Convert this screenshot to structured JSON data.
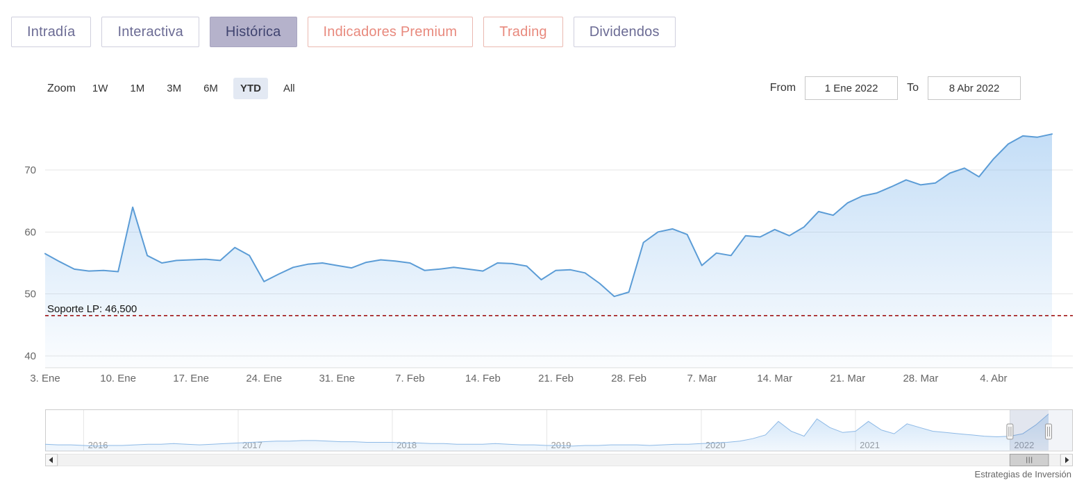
{
  "tabs": [
    {
      "label": "Intradía",
      "active": false,
      "style": "purple"
    },
    {
      "label": "Interactiva",
      "active": false,
      "style": "purple"
    },
    {
      "label": "Histórica",
      "active": true,
      "style": "purple"
    },
    {
      "label": "Indicadores Premium",
      "active": false,
      "style": "salmon"
    },
    {
      "label": "Trading",
      "active": false,
      "style": "salmon"
    },
    {
      "label": "Dividendos",
      "active": false,
      "style": "purple"
    }
  ],
  "toolbar": {
    "zoom_label": "Zoom",
    "zoom_buttons": [
      {
        "label": "1W",
        "selected": false
      },
      {
        "label": "1M",
        "selected": false
      },
      {
        "label": "3M",
        "selected": false
      },
      {
        "label": "6M",
        "selected": false
      },
      {
        "label": "YTD",
        "selected": true
      },
      {
        "label": "All",
        "selected": false
      }
    ],
    "from_label": "From",
    "from_value": "1 Ene 2022",
    "to_label": "To",
    "to_value": "8 Abr 2022"
  },
  "chart_data": [
    {
      "type": "area",
      "name": "price-main",
      "title": "",
      "xlabel": "",
      "ylabel": "",
      "ylim": [
        38,
        76.5
      ],
      "yticks": [
        40,
        50,
        60,
        70
      ],
      "grid": "horizontal",
      "x": [
        "3 Ene",
        "4 Ene",
        "5 Ene",
        "6 Ene",
        "7 Ene",
        "10 Ene",
        "11 Ene",
        "12 Ene",
        "13 Ene",
        "14 Ene",
        "17 Ene",
        "18 Ene",
        "19 Ene",
        "20 Ene",
        "21 Ene",
        "24 Ene",
        "25 Ene",
        "26 Ene",
        "27 Ene",
        "28 Ene",
        "31 Ene",
        "1 Feb",
        "2 Feb",
        "3 Feb",
        "4 Feb",
        "7 Feb",
        "8 Feb",
        "9 Feb",
        "10 Feb",
        "11 Feb",
        "14 Feb",
        "15 Feb",
        "16 Feb",
        "17 Feb",
        "18 Feb",
        "21 Feb",
        "22 Feb",
        "23 Feb",
        "24 Feb",
        "25 Feb",
        "28 Feb",
        "1 Mar",
        "2 Mar",
        "3 Mar",
        "4 Mar",
        "7 Mar",
        "8 Mar",
        "9 Mar",
        "10 Mar",
        "11 Mar",
        "14 Mar",
        "15 Mar",
        "16 Mar",
        "17 Mar",
        "18 Mar",
        "21 Mar",
        "22 Mar",
        "23 Mar",
        "24 Mar",
        "25 Mar",
        "28 Mar",
        "29 Mar",
        "30 Mar",
        "31 Mar",
        "1 Abr",
        "4 Abr",
        "5 Abr",
        "6 Abr",
        "7 Abr",
        "8 Abr"
      ],
      "values": [
        56.5,
        55.2,
        54.0,
        53.7,
        53.8,
        53.6,
        64.0,
        56.2,
        55.0,
        55.4,
        55.5,
        55.6,
        55.4,
        57.5,
        56.2,
        52.0,
        53.2,
        54.3,
        54.8,
        55.0,
        54.6,
        54.2,
        55.1,
        55.5,
        55.3,
        55.0,
        53.8,
        54.0,
        54.3,
        54.0,
        53.7,
        55.0,
        54.9,
        54.5,
        52.3,
        53.8,
        53.9,
        53.4,
        51.7,
        49.6,
        50.3,
        58.3,
        60.0,
        60.5,
        59.6,
        54.6,
        56.6,
        56.2,
        59.4,
        59.2,
        60.4,
        59.4,
        60.8,
        63.3,
        62.7,
        64.7,
        65.8,
        66.3,
        67.3,
        68.4,
        67.6,
        67.9,
        69.5,
        70.3,
        68.9,
        71.8,
        74.2,
        75.5,
        75.3,
        75.8
      ],
      "x_tick_indices": [
        0,
        5,
        10,
        15,
        20,
        25,
        30,
        35,
        40,
        45,
        50,
        55,
        60,
        65
      ],
      "x_tick_labels": [
        "3. Ene",
        "10. Ene",
        "17. Ene",
        "24. Ene",
        "31. Ene",
        "7. Feb",
        "14. Feb",
        "21. Feb",
        "28. Feb",
        "7. Mar",
        "14. Mar",
        "21. Mar",
        "28. Mar",
        "4. Abr"
      ],
      "annotation_line": {
        "value": 46.5,
        "label": "Soporte LP: 46,500",
        "color": "#990000",
        "style": "dashed"
      }
    },
    {
      "type": "area",
      "name": "navigator-overview",
      "ylim": [
        14,
        78
      ],
      "values": [
        25,
        24,
        24,
        23,
        22,
        23,
        23,
        24,
        25,
        25,
        26,
        25,
        24,
        25,
        26,
        27,
        28,
        29,
        30,
        30,
        31,
        31,
        30,
        29,
        29,
        28,
        28,
        28,
        27,
        27,
        26,
        26,
        25,
        25,
        25,
        26,
        25,
        24,
        24,
        23,
        23,
        22,
        23,
        23,
        24,
        24,
        24,
        23,
        24,
        25,
        25,
        26,
        27,
        28,
        30,
        34,
        40,
        62,
        46,
        38,
        66,
        52,
        44,
        46,
        62,
        48,
        42,
        58,
        52,
        46,
        44,
        42,
        40,
        38,
        37,
        38,
        42,
        56,
        74
      ],
      "x_tick_labels": [
        "2016",
        "2017",
        "2018",
        "2019",
        "2020",
        "2021",
        "2022"
      ],
      "x_tick_indices": [
        3,
        15,
        27,
        39,
        51,
        63,
        75
      ],
      "selection_start_index": 75,
      "legend": "none"
    }
  ],
  "footer": {
    "credit": "Estrategias de Inversión"
  },
  "colors": {
    "line": "#5b9cd6",
    "area_base": "#7cb5ec",
    "grid": "#e6e6e6",
    "support_line": "#990000",
    "tab_purple_text": "#6b6b94",
    "tab_salmon_text": "#e8897d",
    "tab_active_bg": "#b5b2cb",
    "zoom_selected_bg": "#e3e9f3"
  }
}
